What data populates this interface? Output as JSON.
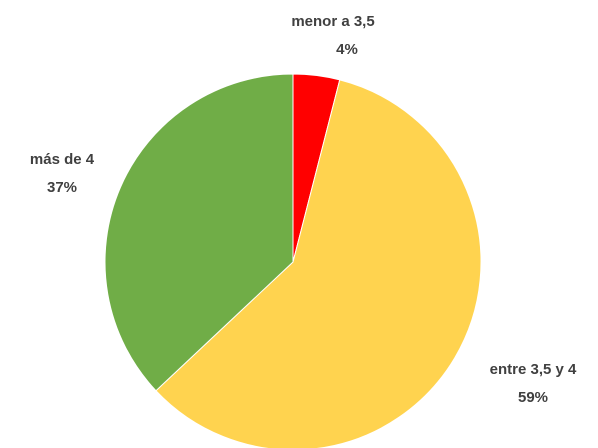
{
  "chart_data": {
    "type": "pie",
    "categories": [
      "menor a 3,5",
      "entre 3,5 y 4",
      "más de 4"
    ],
    "values": [
      4,
      59,
      37
    ],
    "value_labels": [
      "4%",
      "59%",
      "37%"
    ],
    "colors": [
      "#ff0000",
      "#ffd34f",
      "#70ad47"
    ]
  }
}
